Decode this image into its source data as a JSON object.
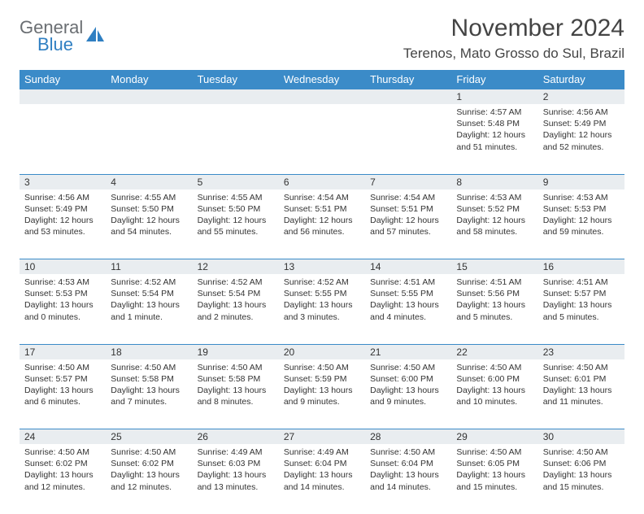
{
  "logo": {
    "part1": "General",
    "part2": "Blue"
  },
  "title": "November 2024",
  "location": "Terenos, Mato Grosso do Sul, Brazil",
  "colors": {
    "header_bg": "#3b8bc8",
    "header_text": "#ffffff",
    "daynum_bg": "#e9edf0",
    "border": "#3b8bc8",
    "logo_gray": "#6a6e72",
    "logo_blue": "#2f7fc2"
  },
  "day_headers": [
    "Sunday",
    "Monday",
    "Tuesday",
    "Wednesday",
    "Thursday",
    "Friday",
    "Saturday"
  ],
  "weeks": [
    [
      null,
      null,
      null,
      null,
      null,
      {
        "n": "1",
        "sr": "4:57 AM",
        "ss": "5:48 PM",
        "dl": "12 hours and 51 minutes."
      },
      {
        "n": "2",
        "sr": "4:56 AM",
        "ss": "5:49 PM",
        "dl": "12 hours and 52 minutes."
      }
    ],
    [
      {
        "n": "3",
        "sr": "4:56 AM",
        "ss": "5:49 PM",
        "dl": "12 hours and 53 minutes."
      },
      {
        "n": "4",
        "sr": "4:55 AM",
        "ss": "5:50 PM",
        "dl": "12 hours and 54 minutes."
      },
      {
        "n": "5",
        "sr": "4:55 AM",
        "ss": "5:50 PM",
        "dl": "12 hours and 55 minutes."
      },
      {
        "n": "6",
        "sr": "4:54 AM",
        "ss": "5:51 PM",
        "dl": "12 hours and 56 minutes."
      },
      {
        "n": "7",
        "sr": "4:54 AM",
        "ss": "5:51 PM",
        "dl": "12 hours and 57 minutes."
      },
      {
        "n": "8",
        "sr": "4:53 AM",
        "ss": "5:52 PM",
        "dl": "12 hours and 58 minutes."
      },
      {
        "n": "9",
        "sr": "4:53 AM",
        "ss": "5:53 PM",
        "dl": "12 hours and 59 minutes."
      }
    ],
    [
      {
        "n": "10",
        "sr": "4:53 AM",
        "ss": "5:53 PM",
        "dl": "13 hours and 0 minutes."
      },
      {
        "n": "11",
        "sr": "4:52 AM",
        "ss": "5:54 PM",
        "dl": "13 hours and 1 minute."
      },
      {
        "n": "12",
        "sr": "4:52 AM",
        "ss": "5:54 PM",
        "dl": "13 hours and 2 minutes."
      },
      {
        "n": "13",
        "sr": "4:52 AM",
        "ss": "5:55 PM",
        "dl": "13 hours and 3 minutes."
      },
      {
        "n": "14",
        "sr": "4:51 AM",
        "ss": "5:55 PM",
        "dl": "13 hours and 4 minutes."
      },
      {
        "n": "15",
        "sr": "4:51 AM",
        "ss": "5:56 PM",
        "dl": "13 hours and 5 minutes."
      },
      {
        "n": "16",
        "sr": "4:51 AM",
        "ss": "5:57 PM",
        "dl": "13 hours and 5 minutes."
      }
    ],
    [
      {
        "n": "17",
        "sr": "4:50 AM",
        "ss": "5:57 PM",
        "dl": "13 hours and 6 minutes."
      },
      {
        "n": "18",
        "sr": "4:50 AM",
        "ss": "5:58 PM",
        "dl": "13 hours and 7 minutes."
      },
      {
        "n": "19",
        "sr": "4:50 AM",
        "ss": "5:58 PM",
        "dl": "13 hours and 8 minutes."
      },
      {
        "n": "20",
        "sr": "4:50 AM",
        "ss": "5:59 PM",
        "dl": "13 hours and 9 minutes."
      },
      {
        "n": "21",
        "sr": "4:50 AM",
        "ss": "6:00 PM",
        "dl": "13 hours and 9 minutes."
      },
      {
        "n": "22",
        "sr": "4:50 AM",
        "ss": "6:00 PM",
        "dl": "13 hours and 10 minutes."
      },
      {
        "n": "23",
        "sr": "4:50 AM",
        "ss": "6:01 PM",
        "dl": "13 hours and 11 minutes."
      }
    ],
    [
      {
        "n": "24",
        "sr": "4:50 AM",
        "ss": "6:02 PM",
        "dl": "13 hours and 12 minutes."
      },
      {
        "n": "25",
        "sr": "4:50 AM",
        "ss": "6:02 PM",
        "dl": "13 hours and 12 minutes."
      },
      {
        "n": "26",
        "sr": "4:49 AM",
        "ss": "6:03 PM",
        "dl": "13 hours and 13 minutes."
      },
      {
        "n": "27",
        "sr": "4:49 AM",
        "ss": "6:04 PM",
        "dl": "13 hours and 14 minutes."
      },
      {
        "n": "28",
        "sr": "4:50 AM",
        "ss": "6:04 PM",
        "dl": "13 hours and 14 minutes."
      },
      {
        "n": "29",
        "sr": "4:50 AM",
        "ss": "6:05 PM",
        "dl": "13 hours and 15 minutes."
      },
      {
        "n": "30",
        "sr": "4:50 AM",
        "ss": "6:06 PM",
        "dl": "13 hours and 15 minutes."
      }
    ]
  ],
  "labels": {
    "sunrise_prefix": "Sunrise: ",
    "sunset_prefix": "Sunset: ",
    "daylight_prefix": "Daylight: "
  }
}
